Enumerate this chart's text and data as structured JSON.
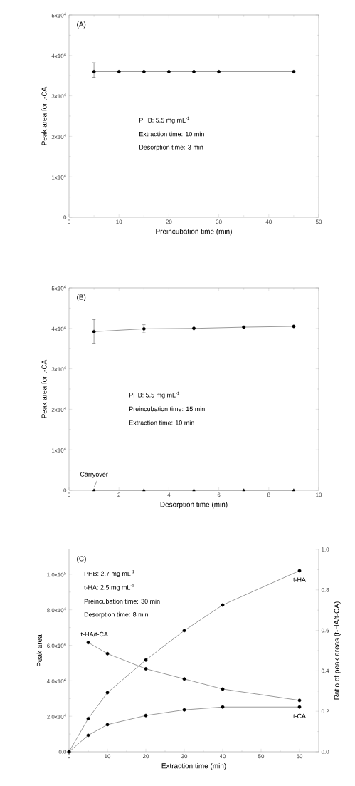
{
  "chart_data": [
    {
      "type": "line",
      "xlabel": "Preincubation time (min)",
      "ylabel": "Peak area for t-CA",
      "annotations": [
        "(A)",
        "PHB: 5.5 mg mL$^{-1}$",
        "Extraction time: 10 min",
        "Desorption time: 3 min"
      ],
      "x": [
        5,
        10,
        15,
        20,
        25,
        30,
        45
      ],
      "series": [
        {
          "color": "#000000",
          "marker": "circle",
          "values": [
            36000,
            36000,
            36000,
            36000,
            36000,
            36000,
            36000
          ],
          "errors": [
            [
              34600,
              38200
            ],
            null,
            null,
            null,
            null,
            null,
            null
          ]
        }
      ],
      "xlim": [
        0,
        50
      ],
      "xticks": [
        0,
        10,
        20,
        30,
        40,
        50
      ],
      "ylim": [
        0,
        50000
      ],
      "yticks": [
        {
          "value": 0,
          "label": "0"
        },
        {
          "value": 10000,
          "label": "1x10$^{4}$"
        },
        {
          "value": 20000,
          "label": "2x10$^{4}$"
        },
        {
          "value": 30000,
          "label": "3x10$^{4}$"
        },
        {
          "value": 40000,
          "label": "4x10$^{4}$"
        },
        {
          "value": 50000,
          "label": "5x10$^{4}$"
        }
      ],
      "line_style": "solid",
      "grid": false
    },
    {
      "type": "line",
      "xlabel": "Desorption time (min)",
      "ylabel": "Peak area for t-CA",
      "annotations": [
        "(B)",
        "PHB: 5.5 mg mL$^{-1}$",
        "Preincubation time: 15 min",
        "Extraction time: 10 min",
        {
          "text": "Carryover",
          "x": 1,
          "y": 0
        }
      ],
      "x": [
        1,
        3,
        5,
        7,
        9
      ],
      "series": [
        {
          "color": "#000000",
          "marker": "circle",
          "values": [
            39200,
            39900,
            40000,
            40300,
            40500
          ],
          "errors": [
            3000,
            1000,
            null,
            null,
            null
          ]
        },
        {
          "color": "#000000",
          "marker": "triangle",
          "values": [
            0,
            0,
            0,
            0,
            0
          ]
        }
      ],
      "xlim": [
        0,
        10
      ],
      "xticks": [
        0,
        2,
        4,
        6,
        8,
        10
      ],
      "ylim": [
        0,
        50000
      ],
      "yticks": [
        {
          "value": 0,
          "label": "0"
        },
        {
          "value": 10000,
          "label": "1x10$^{4}$"
        },
        {
          "value": 20000,
          "label": "2x10$^{4}$"
        },
        {
          "value": 30000,
          "label": "3x10$^{4}$"
        },
        {
          "value": 40000,
          "label": "4x10$^{4}$"
        },
        {
          "value": 50000,
          "label": "5x10$^{4}$"
        }
      ],
      "line_style": "solid",
      "grid": false
    },
    {
      "type": "line",
      "xlabel": "Extraction time (min)",
      "ylabel": "Peak area",
      "y2label": "Ratio of peak areas (t-HA/t-CA)",
      "annotations": [
        "(C)",
        "PHB: 2.7 mg mL$^{-1}$",
        "t-HA: 2.5 mg mL$^{-1}$",
        "Preincubation time: 30 min",
        "Desorption time: 8 min"
      ],
      "x": [
        0,
        5,
        10,
        20,
        30,
        40,
        60
      ],
      "series": [
        {
          "name": "t-HA",
          "color": "#000000",
          "marker": "circle",
          "values": [
            0,
            18700,
            33300,
            51700,
            68300,
            82700,
            102000
          ]
        },
        {
          "name": "t-CA",
          "color": "#000000",
          "marker": "circle",
          "values": [
            0,
            9300,
            15300,
            20400,
            23600,
            25200,
            25200
          ]
        },
        {
          "name": "t-HA/t-CA",
          "color": "#000000",
          "marker": "circle",
          "axis": "y2",
          "x": [
            5,
            10,
            20,
            30,
            40,
            60
          ],
          "values": [
            0.54,
            0.485,
            0.41,
            0.36,
            0.31,
            0.254
          ]
        }
      ],
      "xlim": [
        0,
        65
      ],
      "xticks": [
        0,
        10,
        20,
        30,
        40,
        50,
        60
      ],
      "ylim": [
        0,
        114000
      ],
      "yticks": [
        {
          "value": 0,
          "label": "0.0"
        },
        {
          "value": 20000,
          "label": "2.0x10$^{4}$"
        },
        {
          "value": 40000,
          "label": "4.0x10$^{4}$"
        },
        {
          "value": 60000,
          "label": "6.0x10$^{4}$"
        },
        {
          "value": 80000,
          "label": "8.0x10$^{4}$"
        },
        {
          "value": 100000,
          "label": "1.0x10$^{5}$"
        }
      ],
      "y2lim": [
        0,
        1
      ],
      "y2ticks": [
        {
          "value": 0,
          "label": "0.0"
        },
        0.2,
        0.4,
        0.6,
        0.8,
        {
          "value": 1,
          "label": "1.0"
        }
      ],
      "line_style": "solid",
      "grid": false
    }
  ]
}
